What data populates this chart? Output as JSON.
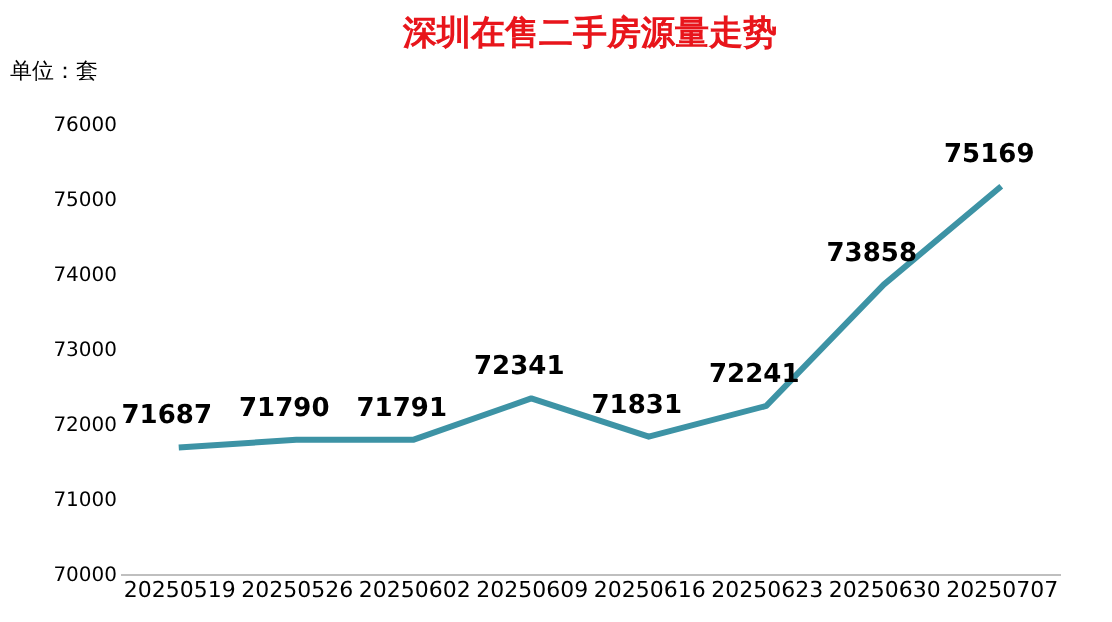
{
  "chart_data": {
    "type": "line",
    "title": "深圳在售二手房源量走势",
    "annotations": [
      "单位：套"
    ],
    "categories": [
      "20250519",
      "20250526",
      "20250602",
      "20250609",
      "20250616",
      "20250623",
      "20250630",
      "20250707"
    ],
    "series": [
      {
        "color": "#3d93a5",
        "values": [
          71687,
          71790,
          71791,
          72341,
          71831,
          72241,
          73858,
          75169
        ]
      }
    ],
    "ylim": [
      70000,
      76000
    ],
    "yticks": [
      70000,
      71000,
      72000,
      73000,
      74000,
      75000,
      76000
    ],
    "data_labels": true,
    "grid": false,
    "marker": "none",
    "line_style": "solid"
  }
}
